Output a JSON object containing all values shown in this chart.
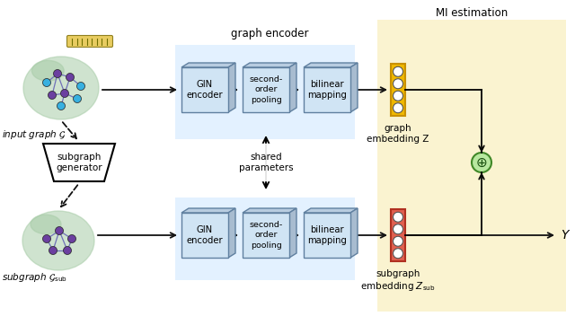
{
  "bg_color": "#ffffff",
  "mi_bg_color": "#faf3d0",
  "graph_encoder_bg_color": "#ddeeff",
  "title_graph_encoder": "graph encoder",
  "title_mi": "MI estimation",
  "label_input": "input graph $\\mathcal{G}$",
  "label_subgraph": "subgraph $\\mathcal{G}_{\\mathrm{sub}}$",
  "label_gin_encoder": "GIN\nencoder",
  "label_second_order": "second-\norder\npooling",
  "label_bilinear": "bilinear\nmapping",
  "label_shared": "shared\nparameters",
  "label_graph_emb": "graph\nembedding Z",
  "label_subgraph_emb": "subgraph\nembedding $Z_{\\mathrm{sub}}$",
  "label_Y": "$Y$",
  "node_color_cyan": "#38b0e0",
  "node_color_purple": "#6b3fa0",
  "brain_color": "#a8cca8",
  "arrow_color": "#111111",
  "gold_color": "#f0b800",
  "gold_border": "#c89000",
  "red_color": "#e06050",
  "red_border": "#b03020",
  "circle_fill": "#ffffff",
  "plus_circle_fill": "#b8e8a0",
  "plus_circle_edge": "#408828",
  "bar_fill": "#e8cc60",
  "bar_edge": "#908020",
  "box_face": "#d0e4f4",
  "box_top": "#b8cce0",
  "box_right": "#a8bcd0",
  "box_edge": "#6080a0"
}
